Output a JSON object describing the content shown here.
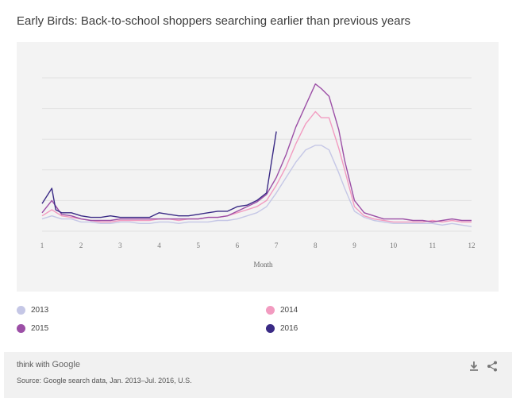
{
  "page": {
    "title": "Early Birds: Back-to-school shoppers searching earlier than previous years"
  },
  "footer": {
    "brand_prefix": "think with",
    "brand_name": "Google",
    "source": "Source: Google search data, Jan. 2013–Jul. 2016, U.S.",
    "download_icon": "download-icon",
    "share_icon": "share-icon"
  },
  "colors": {
    "s2013": "#c5c7e6",
    "s2014": "#f29bc0",
    "s2015": "#9c4fa6",
    "s2016": "#3a2a85",
    "grid": "#e2e2e2",
    "panel": "#f3f3f3"
  },
  "chart_data": {
    "type": "line",
    "title": "Early Birds: Back-to-school shoppers searching earlier than previous years",
    "xlabel": "Month",
    "ylabel": "",
    "xlim": [
      1,
      12
    ],
    "ylim": [
      0,
      100
    ],
    "xticks": [
      "1",
      "2",
      "3",
      "4",
      "5",
      "6",
      "7",
      "8",
      "9",
      "10",
      "11",
      "12"
    ],
    "grid": true,
    "legend_position": "bottom",
    "series": [
      {
        "name": "2013",
        "x": [
          1.0,
          1.25,
          1.5,
          1.75,
          2.0,
          2.25,
          2.5,
          2.75,
          3.0,
          3.25,
          3.5,
          3.75,
          4.0,
          4.25,
          4.5,
          4.75,
          5.0,
          5.25,
          5.5,
          5.75,
          6.0,
          6.25,
          6.5,
          6.75,
          7.0,
          7.25,
          7.5,
          7.75,
          8.0,
          8.15,
          8.35,
          8.6,
          8.75,
          9.0,
          9.25,
          9.5,
          9.75,
          10.0,
          10.25,
          10.5,
          10.75,
          11.0,
          11.25,
          11.5,
          11.75,
          12.0
        ],
        "values": [
          8,
          10,
          8,
          8,
          6,
          6,
          5,
          5,
          6,
          6,
          5,
          5,
          6,
          6,
          5,
          6,
          6,
          6,
          7,
          7,
          8,
          10,
          12,
          16,
          25,
          35,
          45,
          53,
          56,
          56,
          53,
          38,
          28,
          13,
          9,
          7,
          6,
          5,
          5,
          5,
          5,
          5,
          4,
          5,
          4,
          3
        ]
      },
      {
        "name": "2014",
        "x": [
          1.0,
          1.25,
          1.5,
          1.75,
          2.0,
          2.25,
          2.5,
          2.75,
          3.0,
          3.25,
          3.5,
          3.75,
          4.0,
          4.25,
          4.5,
          4.75,
          5.0,
          5.25,
          5.5,
          5.75,
          6.0,
          6.25,
          6.5,
          6.75,
          7.0,
          7.25,
          7.5,
          7.75,
          8.0,
          8.15,
          8.35,
          8.6,
          8.75,
          9.0,
          9.25,
          9.5,
          9.75,
          10.0,
          10.25,
          10.5,
          10.75,
          11.0,
          11.25,
          11.5,
          11.75,
          12.0
        ],
        "values": [
          10,
          14,
          10,
          9,
          8,
          7,
          6,
          6,
          7,
          7,
          7,
          7,
          8,
          8,
          7,
          8,
          8,
          9,
          9,
          10,
          12,
          14,
          16,
          20,
          30,
          42,
          57,
          70,
          78,
          74,
          74,
          54,
          40,
          16,
          10,
          8,
          7,
          6,
          6,
          6,
          6,
          7,
          6,
          7,
          6,
          6
        ]
      },
      {
        "name": "2015",
        "x": [
          1.0,
          1.25,
          1.5,
          1.75,
          2.0,
          2.25,
          2.5,
          2.75,
          3.0,
          3.25,
          3.5,
          3.75,
          4.0,
          4.25,
          4.5,
          4.75,
          5.0,
          5.25,
          5.5,
          5.75,
          6.0,
          6.25,
          6.5,
          6.75,
          7.0,
          7.25,
          7.5,
          7.75,
          8.0,
          8.15,
          8.35,
          8.6,
          8.75,
          9.0,
          9.25,
          9.5,
          9.75,
          10.0,
          10.25,
          10.5,
          10.75,
          11.0,
          11.25,
          11.5,
          11.75,
          12.0
        ],
        "values": [
          12,
          20,
          11,
          10,
          8,
          7,
          7,
          7,
          8,
          8,
          8,
          8,
          8,
          8,
          8,
          8,
          8,
          9,
          9,
          10,
          13,
          16,
          19,
          24,
          35,
          50,
          68,
          82,
          96,
          93,
          88,
          66,
          46,
          20,
          12,
          10,
          8,
          8,
          8,
          7,
          7,
          6,
          7,
          8,
          7,
          7
        ]
      },
      {
        "name": "2016",
        "x": [
          1.0,
          1.25,
          1.35,
          1.5,
          1.75,
          2.0,
          2.25,
          2.5,
          2.75,
          3.0,
          3.25,
          3.5,
          3.75,
          4.0,
          4.25,
          4.5,
          4.75,
          5.0,
          5.25,
          5.5,
          5.75,
          6.0,
          6.25,
          6.5,
          6.75,
          7.0
        ],
        "values": [
          18,
          28,
          14,
          12,
          12,
          10,
          9,
          9,
          10,
          9,
          9,
          9,
          9,
          12,
          11,
          10,
          10,
          11,
          12,
          13,
          13,
          16,
          17,
          20,
          25,
          65
        ]
      }
    ]
  }
}
